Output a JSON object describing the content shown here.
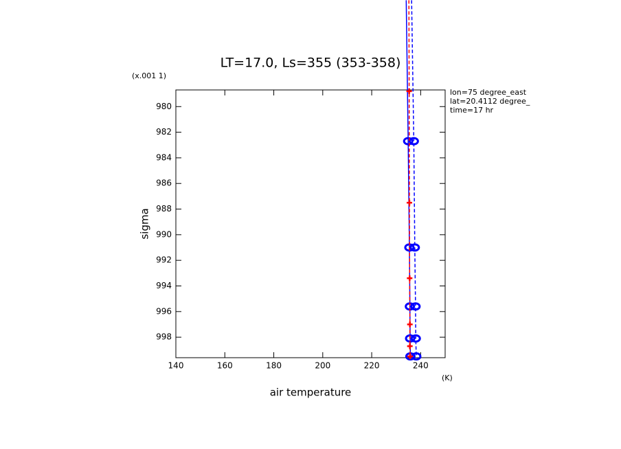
{
  "chart_data": {
    "type": "line",
    "title": "LT=17.0, Ls=355 (353-358)",
    "y_multiplier": "(x.001 1)",
    "xlabel": "air temperature",
    "xunit": "(K)",
    "ylabel": "sigma",
    "annotations": [
      "lon=75 degree_east",
      "lat=20.4112 degree_",
      "time=17 hr"
    ],
    "xlim": [
      140,
      250
    ],
    "xticks": [
      140,
      160,
      180,
      200,
      220,
      240
    ],
    "ylim": [
      999.6,
      978.7
    ],
    "yticks": [
      980,
      982,
      984,
      986,
      988,
      990,
      992,
      994,
      996,
      998
    ],
    "series": [
      {
        "color": "#0000ff",
        "dash": false,
        "marker": "circle",
        "x": [
          234.1,
          234.9,
          235.4,
          235.6,
          235.7,
          235.8
        ],
        "y": [
          971.7,
          982.7,
          991.0,
          995.6,
          998.1,
          999.5
        ]
      },
      {
        "color": "#0000ff",
        "dash": true,
        "marker": "circle",
        "x": [
          236.3,
          237.2,
          237.6,
          237.9,
          238.0,
          238.2
        ],
        "y": [
          971.7,
          982.7,
          991.0,
          995.6,
          998.1,
          999.5
        ]
      },
      {
        "color": "#ff0000",
        "dash": true,
        "marker": "plus",
        "x": [
          235.2,
          235.3,
          235.4,
          235.5,
          235.6,
          235.6,
          235.7
        ],
        "y": [
          971.7,
          978.8,
          987.5,
          993.4,
          997.0,
          998.7,
          999.5
        ]
      }
    ]
  }
}
